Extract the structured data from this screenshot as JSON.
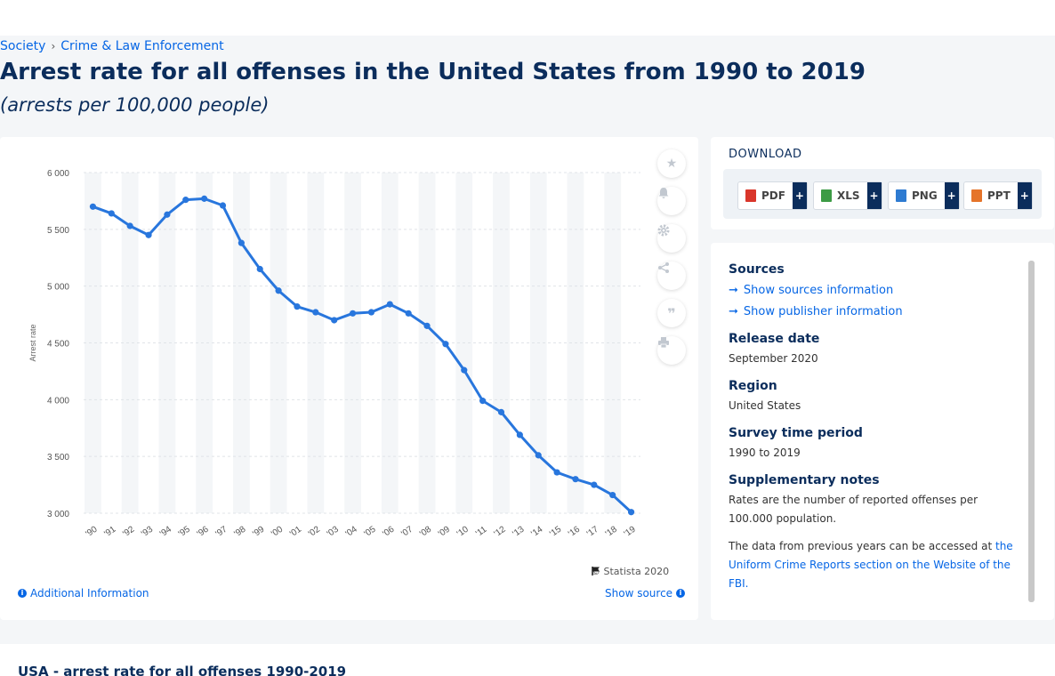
{
  "breadcrumb": {
    "items": [
      "Society",
      "Crime & Law Enforcement"
    ]
  },
  "header": {
    "title": "Arrest rate for all offenses in the United States from 1990 to 2019",
    "subtitle": "(arrests per 100,000 people)"
  },
  "chart_data": {
    "type": "line",
    "xlabel": "",
    "ylabel": "Arrest rate",
    "categories": [
      "'90",
      "'91",
      "'92",
      "'93",
      "'94",
      "'95",
      "'96",
      "'97",
      "'98",
      "'99",
      "'00",
      "'01",
      "'02",
      "'03",
      "'04",
      "'05",
      "'06",
      "'07",
      "'08",
      "'09",
      "'10",
      "'11",
      "'12",
      "'13",
      "'14",
      "'15",
      "'16",
      "'17",
      "'18",
      "'19"
    ],
    "series": [
      {
        "values": [
          5700,
          5640,
          5530,
          5450,
          5630,
          5760,
          5770,
          5710,
          5380,
          5150,
          4960,
          4820,
          4770,
          4700,
          4760,
          4770,
          4840,
          4760,
          4650,
          4490,
          4260,
          3990,
          3890,
          3690,
          3510,
          3360,
          3300,
          3250,
          3160,
          3010
        ]
      }
    ],
    "ylim": [
      3000,
      6000
    ],
    "yticks": [
      3000,
      3500,
      4000,
      4500,
      5000,
      5500,
      6000
    ],
    "ytick_labels": [
      "3 000",
      "3 500",
      "4 000",
      "4 500",
      "5 000",
      "5 500",
      "6 000"
    ],
    "grid": true,
    "color": "#2876dd"
  },
  "chart_footer": {
    "copyright": "© Statista 2020",
    "additional_info": "Additional Information",
    "show_source": "Show source"
  },
  "download": {
    "title": "DOWNLOAD",
    "buttons": [
      {
        "label": "PDF",
        "color": "#d9362b"
      },
      {
        "label": "XLS",
        "color": "#3d9b45"
      },
      {
        "label": "PNG",
        "color": "#2e7bd1"
      },
      {
        "label": "PPT",
        "color": "#e5742a"
      }
    ],
    "plus": "+"
  },
  "info": {
    "sources_heading": "Sources",
    "show_sources": "Show sources information",
    "show_publisher": "Show publisher information",
    "release_heading": "Release date",
    "release_value": "September 2020",
    "region_heading": "Region",
    "region_value": "United States",
    "period_heading": "Survey time period",
    "period_value": "1990 to 2019",
    "notes_heading": "Supplementary notes",
    "notes_value": "Rates are the number of reported offenses per 100.000 population.",
    "notes_more": "The data from previous years can be accessed at",
    "notes_link": "the Uniform Crime Reports section on the Website of the FBI."
  },
  "related": {
    "title": "USA - arrest rate for all offenses 1990-2019"
  }
}
